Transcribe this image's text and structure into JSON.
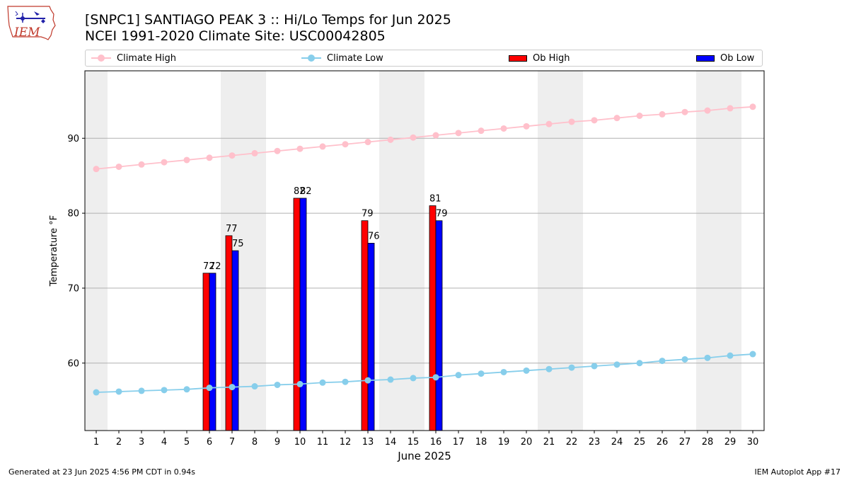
{
  "header": {
    "title": "[SNPC1] SANTIAGO PEAK 3 :: Hi/Lo Temps for Jun 2025",
    "subtitle": "NCEI 1991-2020 Climate Site: USC00042805"
  },
  "logo": {
    "text": "IEM",
    "icon": "iem-iowa-logo-icon"
  },
  "footer": {
    "left": "Generated at 23 Jun 2025 4:56 PM CDT in 0.94s",
    "right": "IEM Autoplot App #17"
  },
  "colors": {
    "climate_high": "#ffc0cb",
    "climate_low": "#87ceeb",
    "ob_high": "#ff0000",
    "ob_low": "#0000ff",
    "weekend_band": "#eeeeee",
    "grid": "#b0b0b0"
  },
  "chart_data": {
    "type": "bar",
    "xlabel": "June 2025",
    "ylabel": "Temperature °F",
    "xlim": [
      0.5,
      30.5
    ],
    "ylim": [
      51,
      99
    ],
    "yticks": [
      60,
      70,
      80,
      90
    ],
    "grid": "horizontal",
    "legend_position": "top",
    "legend": {
      "climate_high": "Climate High",
      "climate_low": "Climate Low",
      "ob_high": "Ob High",
      "ob_low": "Ob Low"
    },
    "days": [
      1,
      2,
      3,
      4,
      5,
      6,
      7,
      8,
      9,
      10,
      11,
      12,
      13,
      14,
      15,
      16,
      17,
      18,
      19,
      20,
      21,
      22,
      23,
      24,
      25,
      26,
      27,
      28,
      29,
      30
    ],
    "weekend_days": [
      1,
      7,
      8,
      14,
      15,
      21,
      22,
      28,
      29
    ],
    "climate_high": [
      85.9,
      86.2,
      86.5,
      86.8,
      87.1,
      87.4,
      87.7,
      88.0,
      88.3,
      88.6,
      88.9,
      89.2,
      89.5,
      89.8,
      90.1,
      90.4,
      90.7,
      91.0,
      91.3,
      91.6,
      91.9,
      92.2,
      92.4,
      92.7,
      93.0,
      93.2,
      93.5,
      93.7,
      94.0,
      94.2
    ],
    "climate_low": [
      56.1,
      56.2,
      56.3,
      56.4,
      56.5,
      56.7,
      56.8,
      56.9,
      57.1,
      57.2,
      57.4,
      57.5,
      57.7,
      57.8,
      58.0,
      58.1,
      58.4,
      58.6,
      58.8,
      59.0,
      59.2,
      59.4,
      59.6,
      59.8,
      60.0,
      60.3,
      60.5,
      60.7,
      61.0,
      61.2
    ],
    "observed": [
      {
        "day": 6,
        "high": 72,
        "low": 72,
        "high_label": "72",
        "low_label": "72"
      },
      {
        "day": 7,
        "high": 77,
        "low": 75,
        "high_label": "77",
        "low_label": "75"
      },
      {
        "day": 10,
        "high": 82,
        "low": 82,
        "high_label": "82",
        "low_label": "82"
      },
      {
        "day": 13,
        "high": 79,
        "low": 76,
        "high_label": "79",
        "low_label": "76"
      },
      {
        "day": 16,
        "high": 81,
        "low": 79,
        "high_label": "81",
        "low_label": "79"
      }
    ]
  }
}
